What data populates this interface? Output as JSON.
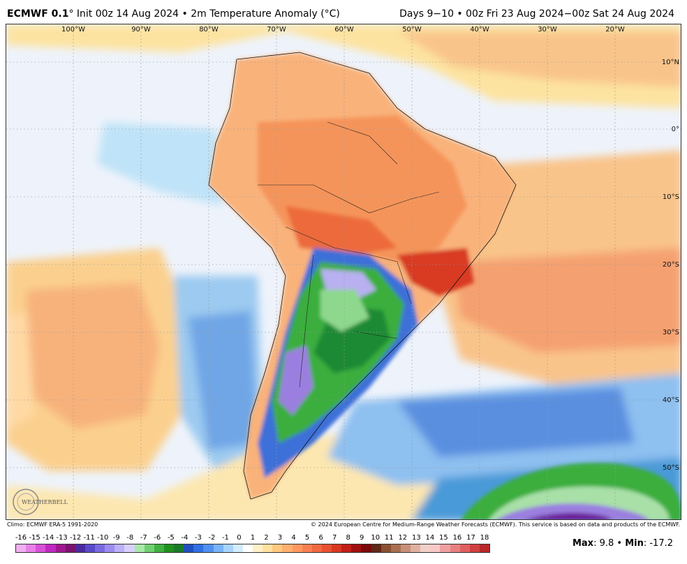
{
  "header": {
    "model": "ECMWF 0.1",
    "degree": "°",
    "init": " Init 00z 14 Aug 2024",
    "sep1": " • ",
    "field": "2m Temperature Anomaly (°C)",
    "valid": "Days 9−10 • 00z Fri 23 Aug 2024−00z Sat 24 Aug 2024"
  },
  "map": {
    "lon_labels": [
      "100°W",
      "90°W",
      "80°W",
      "70°W",
      "60°W",
      "50°W",
      "40°W",
      "30°W",
      "20°W"
    ],
    "lat_labels": [
      "10°N",
      "0°",
      "10°S",
      "20°S",
      "30°S",
      "40°S",
      "50°S"
    ],
    "logo_text": "WEATHERBELL",
    "colors": {
      "warm_light": "#fde3a0",
      "warm_mid": "#f9b27a",
      "warm_strong": "#f07a48",
      "warm_hot": "#d83a22",
      "cool_light": "#bfe3f8",
      "cool_mid": "#6fb0ea",
      "cool_strong": "#3c6fd8",
      "cold_green": "#3aae3e",
      "cold_purple": "#9b7fe0",
      "cold_deep": "#6a1a9a"
    }
  },
  "footer": {
    "climo": "Climo: ECMWF ERA-5 1991-2020",
    "copyright": "© 2024 European Centre for Medium-Range Weather Forecasts (ECMWF). This service is based on data and products of the ECMWF."
  },
  "colorbar": {
    "labels": [
      "-16",
      "-15",
      "-14",
      "-13",
      "-12",
      "-11",
      "-10",
      "-9",
      "-8",
      "-7",
      "-6",
      "-5",
      "-4",
      "-3",
      "-2",
      "-1",
      "0",
      "1",
      "2",
      "3",
      "4",
      "5",
      "6",
      "7",
      "8",
      "9",
      "10",
      "11",
      "12",
      "13",
      "14",
      "15",
      "16",
      "17",
      "18"
    ],
    "colors": [
      "#f0b0f0",
      "#e880e8",
      "#d850d8",
      "#c028c0",
      "#a01890",
      "#7a1470",
      "#4a2aa0",
      "#5a4ac8",
      "#7a6ae0",
      "#9c8cf0",
      "#bcb0f8",
      "#d8d0fc",
      "#a8e8a8",
      "#70d070",
      "#40b040",
      "#209020",
      "#1a7a2a",
      "#2050c0",
      "#3070e0",
      "#5090f0",
      "#78b4f8",
      "#a8d4fc",
      "#d4ecfe",
      "#ffffff",
      "#fff0c8",
      "#ffe0a0",
      "#ffc880",
      "#ffb070",
      "#ff9860",
      "#f88050",
      "#f06840",
      "#e85030",
      "#d83820",
      "#c02018",
      "#a01010",
      "#7a0a0a",
      "#602818",
      "#8a5030",
      "#a87050",
      "#c89078",
      "#e0b0a0",
      "#f0d0c8",
      "#f8c8c8",
      "#f0a0a0",
      "#e88080",
      "#e06060",
      "#d04040",
      "#b82828"
    ]
  },
  "stats": {
    "max_label": "Max",
    "max_value": ": 9.8 • ",
    "min_label": "Min",
    "min_value": ": -17.2"
  }
}
